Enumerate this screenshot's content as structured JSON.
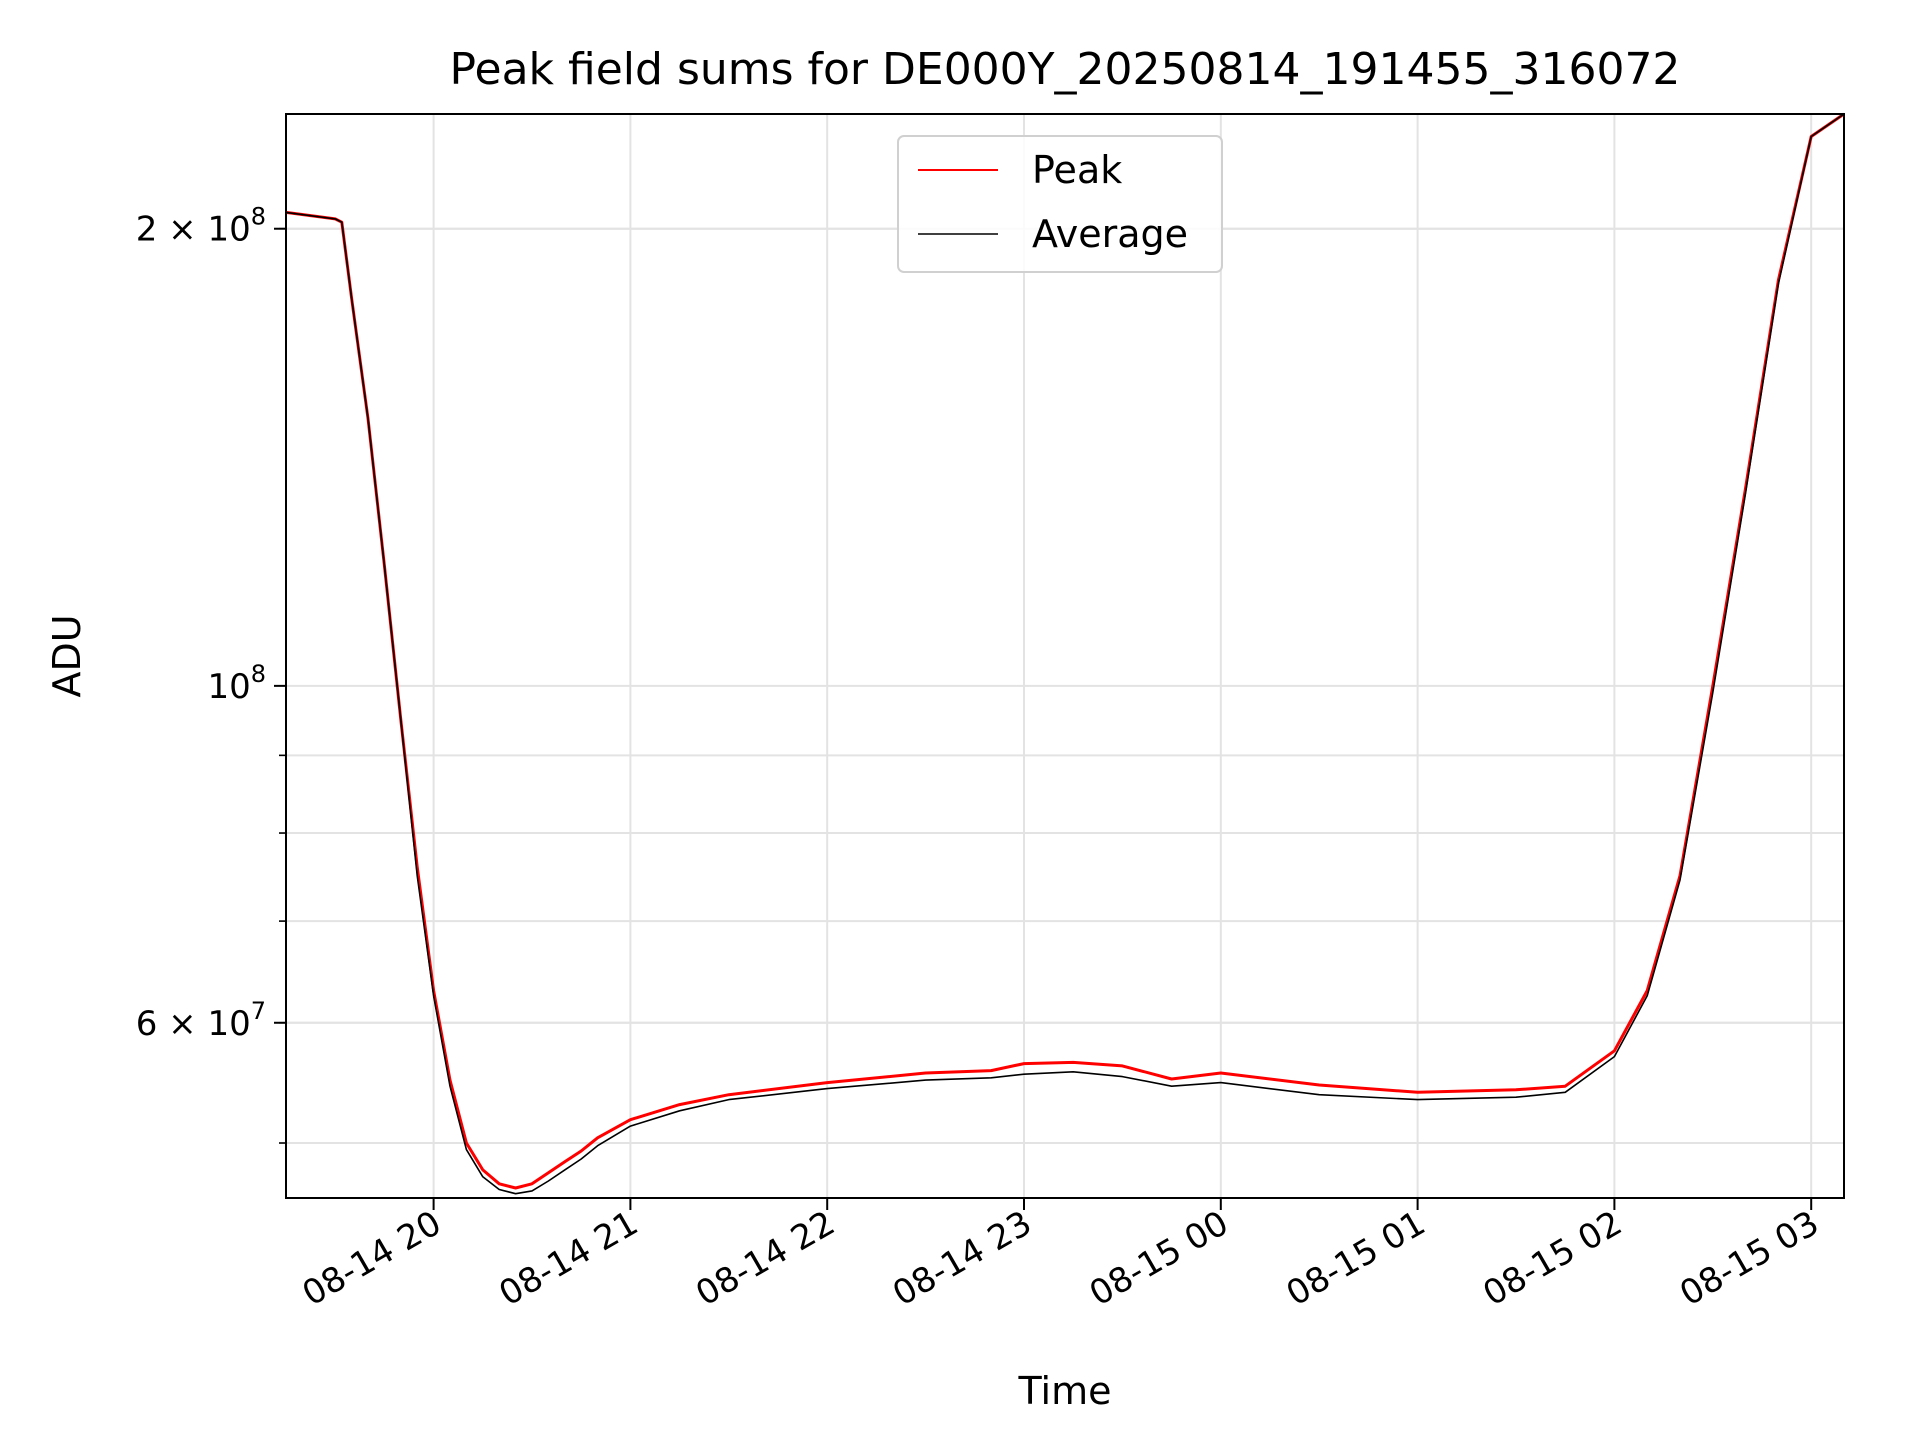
{
  "chart_data": {
    "type": "line",
    "title": "Peak field sums for DE000Y_20250814_191455_316072",
    "xlabel": "Time",
    "ylabel": "ADU",
    "y_scale": "log",
    "ylim": [
      46000000,
      238000000
    ],
    "xlim": [
      "2025-08-14 19:15",
      "2025-08-15 03:10"
    ],
    "grid": true,
    "legend_position": "top-center",
    "x_ticks": [
      {
        "x": "2025-08-14 20:00",
        "label": "08-14 20"
      },
      {
        "x": "2025-08-14 21:00",
        "label": "08-14 21"
      },
      {
        "x": "2025-08-14 22:00",
        "label": "08-14 22"
      },
      {
        "x": "2025-08-14 23:00",
        "label": "08-14 23"
      },
      {
        "x": "2025-08-15 00:00",
        "label": "08-15 00"
      },
      {
        "x": "2025-08-15 01:00",
        "label": "08-15 01"
      },
      {
        "x": "2025-08-15 02:00",
        "label": "08-15 02"
      },
      {
        "x": "2025-08-15 03:00",
        "label": "08-15 03"
      }
    ],
    "y_ticks": [
      {
        "value": 60000000,
        "mantissa": "6",
        "base": "10",
        "exp": "7"
      },
      {
        "value": 100000000,
        "mantissa": "",
        "base": "10",
        "exp": "8"
      },
      {
        "value": 200000000,
        "mantissa": "2",
        "base": "10",
        "exp": "8"
      }
    ],
    "y_minor_ticks": [
      50000000,
      60000000,
      70000000,
      80000000,
      90000000,
      200000000
    ],
    "series": [
      {
        "name": "Peak",
        "color": "#ff0000",
        "x": [
          "2025-08-14 19:15",
          "2025-08-14 19:30",
          "2025-08-14 19:32",
          "2025-08-14 19:35",
          "2025-08-14 19:40",
          "2025-08-14 19:45",
          "2025-08-14 19:50",
          "2025-08-14 19:55",
          "2025-08-14 20:00",
          "2025-08-14 20:05",
          "2025-08-14 20:10",
          "2025-08-14 20:15",
          "2025-08-14 20:20",
          "2025-08-14 20:25",
          "2025-08-14 20:30",
          "2025-08-14 20:35",
          "2025-08-14 20:40",
          "2025-08-14 20:45",
          "2025-08-14 20:50",
          "2025-08-14 21:00",
          "2025-08-14 21:15",
          "2025-08-14 21:30",
          "2025-08-14 22:00",
          "2025-08-14 22:30",
          "2025-08-14 22:50",
          "2025-08-14 23:00",
          "2025-08-14 23:15",
          "2025-08-14 23:30",
          "2025-08-14 23:45",
          "2025-08-15 00:00",
          "2025-08-15 00:30",
          "2025-08-15 01:00",
          "2025-08-15 01:30",
          "2025-08-15 01:45",
          "2025-08-15 02:00",
          "2025-08-15 02:10",
          "2025-08-15 02:20",
          "2025-08-15 02:30",
          "2025-08-15 02:40",
          "2025-08-15 02:50",
          "2025-08-15 03:00",
          "2025-08-15 03:10"
        ],
        "y": [
          205000000,
          203000000,
          202000000,
          180000000,
          150000000,
          120000000,
          95000000,
          76000000,
          63000000,
          55000000,
          50000000,
          48000000,
          47000000,
          46700000,
          47000000,
          47800000,
          48600000,
          49400000,
          50400000,
          51800000,
          53000000,
          53800000,
          54800000,
          55600000,
          55800000,
          56400000,
          56500000,
          56200000,
          55100000,
          55600000,
          54600000,
          54000000,
          54200000,
          54500000,
          57500000,
          63000000,
          75000000,
          100000000,
          135000000,
          185000000,
          230000000,
          238000000
        ]
      },
      {
        "name": "Average",
        "color": "#000000",
        "x": [
          "2025-08-14 19:15",
          "2025-08-14 19:30",
          "2025-08-14 19:32",
          "2025-08-14 19:35",
          "2025-08-14 19:40",
          "2025-08-14 19:45",
          "2025-08-14 19:50",
          "2025-08-14 19:55",
          "2025-08-14 20:00",
          "2025-08-14 20:05",
          "2025-08-14 20:10",
          "2025-08-14 20:15",
          "2025-08-14 20:20",
          "2025-08-14 20:25",
          "2025-08-14 20:30",
          "2025-08-14 20:35",
          "2025-08-14 20:40",
          "2025-08-14 20:45",
          "2025-08-14 20:50",
          "2025-08-14 21:00",
          "2025-08-14 21:15",
          "2025-08-14 21:30",
          "2025-08-14 22:00",
          "2025-08-14 22:30",
          "2025-08-14 22:50",
          "2025-08-14 23:00",
          "2025-08-14 23:15",
          "2025-08-14 23:30",
          "2025-08-14 23:45",
          "2025-08-15 00:00",
          "2025-08-15 00:30",
          "2025-08-15 01:00",
          "2025-08-15 01:30",
          "2025-08-15 01:45",
          "2025-08-15 02:00",
          "2025-08-15 02:10",
          "2025-08-15 02:20",
          "2025-08-15 02:30",
          "2025-08-15 02:40",
          "2025-08-15 02:50",
          "2025-08-15 03:00",
          "2025-08-15 03:10"
        ],
        "y": [
          205000000,
          203000000,
          202000000,
          180000000,
          150000000,
          120000000,
          95000000,
          75000000,
          62500000,
          54500000,
          49500000,
          47500000,
          46600000,
          46300000,
          46500000,
          47200000,
          48000000,
          48800000,
          49800000,
          51300000,
          52500000,
          53400000,
          54300000,
          55000000,
          55200000,
          55500000,
          55700000,
          55300000,
          54500000,
          54800000,
          53800000,
          53400000,
          53600000,
          54000000,
          57000000,
          62500000,
          74500000,
          99000000,
          134000000,
          184000000,
          230000000,
          238000000
        ]
      }
    ]
  }
}
